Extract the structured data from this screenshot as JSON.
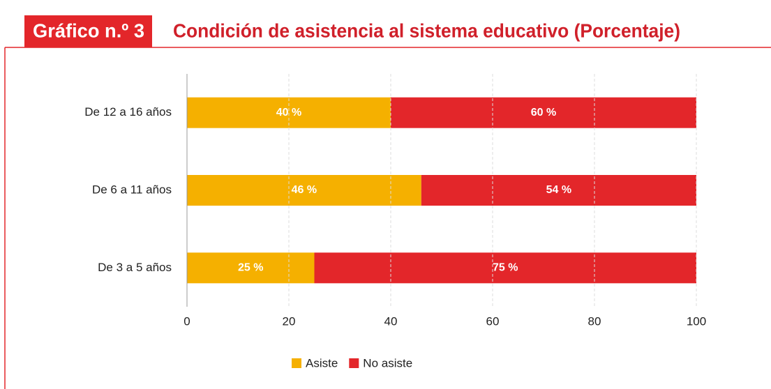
{
  "chart_data": {
    "type": "stacked_barh",
    "label": "Gráfico n.º 3",
    "title": "Condición de asistencia al sistema educativo (Porcentaje)",
    "categories": [
      "De 12 a 16 años",
      "De 6 a 11 años",
      "De 3 a 5 años"
    ],
    "series": [
      {
        "name": "Asiste",
        "color": "#f5b000",
        "values": [
          40,
          46,
          25
        ],
        "value_labels": [
          "40 %",
          "46 %",
          "25 %"
        ]
      },
      {
        "name": "No asiste",
        "color": "#e3262a",
        "values": [
          60,
          54,
          75
        ],
        "value_labels": [
          "60 %",
          "54 %",
          "75 %"
        ]
      }
    ],
    "xlim": [
      0,
      100
    ],
    "xticks": [
      0,
      20,
      40,
      60,
      80,
      100
    ],
    "grid": true,
    "legend": "bottom"
  }
}
